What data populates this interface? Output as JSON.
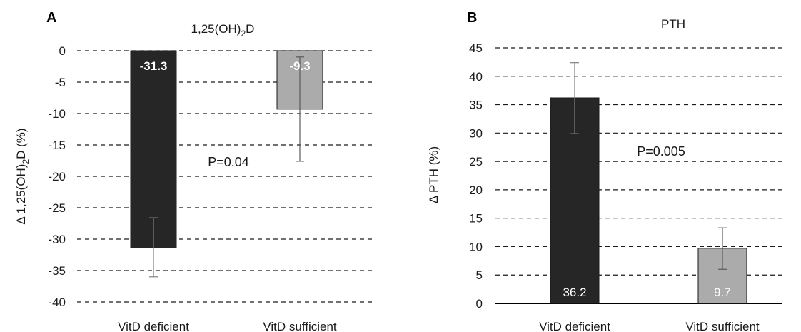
{
  "chart_data": [
    {
      "type": "bar",
      "panel_letter": "A",
      "title_main": "1,25(OH)",
      "title_sub": "2",
      "title_end": "D",
      "ylabel_main": "Δ 1,25(OH)",
      "ylabel_sub": "2",
      "ylabel_end": "D (%)",
      "categories": [
        "VitD deficient",
        "VitD sufficient"
      ],
      "values": [
        -31.3,
        -9.3
      ],
      "error_low": [
        -36.0,
        -17.6
      ],
      "error_high": [
        -26.6,
        -1.0
      ],
      "data_labels": [
        "-31.3",
        "-9.3"
      ],
      "bar_colors": [
        "#262626",
        "#ababab"
      ],
      "label_colors": [
        "#ffffff",
        "#ffffff"
      ],
      "label_weight": "bold",
      "label_position": "top",
      "ylim": [
        -40,
        0
      ],
      "yticks": [
        0,
        -5,
        -10,
        -15,
        -20,
        -25,
        -30,
        -35,
        -40
      ],
      "grid": "dashed",
      "annotation": "P=0.04"
    },
    {
      "type": "bar",
      "panel_letter": "B",
      "title_main": "PTH",
      "title_sub": "",
      "title_end": "",
      "ylabel_main": "Δ PTH (%)",
      "ylabel_sub": "",
      "ylabel_end": "",
      "categories": [
        "VitD deficient",
        "VitD sufficient"
      ],
      "values": [
        36.2,
        9.7
      ],
      "error_low": [
        29.9,
        6.0
      ],
      "error_high": [
        42.4,
        13.3
      ],
      "data_labels": [
        "36.2",
        "9.7"
      ],
      "bar_colors": [
        "#262626",
        "#ababab"
      ],
      "label_colors": [
        "#ffffff",
        "#ffffff"
      ],
      "label_weight": "normal",
      "label_position": "bottom",
      "ylim": [
        0,
        45
      ],
      "yticks": [
        0,
        5,
        10,
        15,
        20,
        25,
        30,
        35,
        40,
        45
      ],
      "grid": "dashed",
      "annotation": "P=0.005"
    }
  ]
}
